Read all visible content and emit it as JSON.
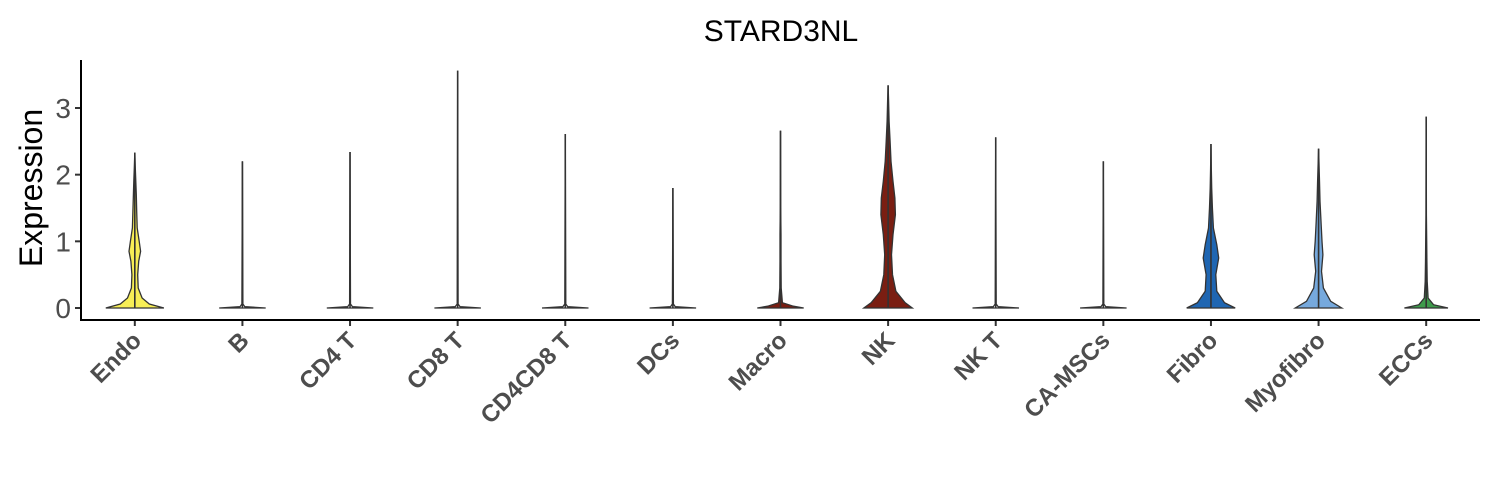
{
  "chart_data": {
    "type": "violin",
    "title": "STARD3NL",
    "xlabel": "",
    "ylabel": "Expression",
    "ylim": [
      -0.18,
      3.72
    ],
    "yticks": [
      0,
      1,
      2,
      3
    ],
    "grid": false,
    "legend": "none",
    "categories": [
      "Endo",
      "B",
      "CD4 T",
      "CD8 T",
      "CD4CD8 T",
      "DCs",
      "Macro",
      "NK",
      "NK T",
      "CA-MSCs",
      "Fibro",
      "Myofibro",
      "ECCs"
    ],
    "colors": [
      "#F7EE55",
      "#FFFFFF",
      "#FFFFFF",
      "#FFFFFF",
      "#FFFFFF",
      "#FFFFFF",
      "#7A1E12",
      "#7A1E12",
      "#FFFFFF",
      "#FFFFFF",
      "#1F66B2",
      "#76A9DD",
      "#3E9B4B"
    ],
    "max_values": [
      2.33,
      2.2,
      2.34,
      3.56,
      2.61,
      1.8,
      2.66,
      3.34,
      2.56,
      2.2,
      2.46,
      2.39,
      2.87
    ],
    "density_profiles": [
      [
        [
          0.0,
          0.6
        ],
        [
          0.06,
          0.3
        ],
        [
          0.15,
          0.15
        ],
        [
          0.3,
          0.07
        ],
        [
          0.5,
          0.06
        ],
        [
          0.7,
          0.08
        ],
        [
          0.85,
          0.12
        ],
        [
          1.0,
          0.09
        ],
        [
          1.2,
          0.05
        ],
        [
          1.45,
          0.04
        ],
        [
          1.7,
          0.03
        ],
        [
          1.9,
          0.02
        ],
        [
          2.1,
          0.01
        ],
        [
          2.33,
          0.0
        ]
      ],
      [
        [
          0.0,
          0.48
        ],
        [
          0.02,
          0.05
        ],
        [
          0.06,
          0.01
        ],
        [
          2.2,
          0.0
        ]
      ],
      [
        [
          0.0,
          0.48
        ],
        [
          0.02,
          0.05
        ],
        [
          0.06,
          0.01
        ],
        [
          2.34,
          0.0
        ]
      ],
      [
        [
          0.0,
          0.48
        ],
        [
          0.02,
          0.05
        ],
        [
          0.06,
          0.01
        ],
        [
          3.56,
          0.0
        ]
      ],
      [
        [
          0.0,
          0.48
        ],
        [
          0.02,
          0.05
        ],
        [
          0.06,
          0.01
        ],
        [
          2.61,
          0.0
        ]
      ],
      [
        [
          0.0,
          0.48
        ],
        [
          0.02,
          0.05
        ],
        [
          0.06,
          0.01
        ],
        [
          1.8,
          0.0
        ]
      ],
      [
        [
          0.0,
          0.48
        ],
        [
          0.03,
          0.25
        ],
        [
          0.08,
          0.04
        ],
        [
          0.3,
          0.015
        ],
        [
          0.7,
          0.01
        ],
        [
          1.1,
          0.01
        ],
        [
          1.5,
          0.005
        ],
        [
          2.66,
          0.0
        ]
      ],
      [
        [
          0.0,
          0.5
        ],
        [
          0.08,
          0.35
        ],
        [
          0.25,
          0.16
        ],
        [
          0.5,
          0.09
        ],
        [
          0.8,
          0.07
        ],
        [
          1.1,
          0.1
        ],
        [
          1.4,
          0.15
        ],
        [
          1.65,
          0.14
        ],
        [
          1.9,
          0.1
        ],
        [
          2.2,
          0.06
        ],
        [
          2.5,
          0.04
        ],
        [
          2.8,
          0.02
        ],
        [
          3.1,
          0.01
        ],
        [
          3.34,
          0.0
        ]
      ],
      [
        [
          0.0,
          0.48
        ],
        [
          0.02,
          0.05
        ],
        [
          0.06,
          0.01
        ],
        [
          2.56,
          0.0
        ]
      ],
      [
        [
          0.0,
          0.48
        ],
        [
          0.02,
          0.05
        ],
        [
          0.06,
          0.01
        ],
        [
          2.2,
          0.0
        ]
      ],
      [
        [
          0.0,
          0.5
        ],
        [
          0.08,
          0.28
        ],
        [
          0.25,
          0.12
        ],
        [
          0.5,
          0.1
        ],
        [
          0.75,
          0.16
        ],
        [
          0.95,
          0.12
        ],
        [
          1.2,
          0.05
        ],
        [
          1.5,
          0.03
        ],
        [
          1.8,
          0.015
        ],
        [
          2.1,
          0.008
        ],
        [
          2.46,
          0.0
        ]
      ],
      [
        [
          0.0,
          0.48
        ],
        [
          0.1,
          0.25
        ],
        [
          0.3,
          0.1
        ],
        [
          0.55,
          0.06
        ],
        [
          0.8,
          0.09
        ],
        [
          1.0,
          0.07
        ],
        [
          1.3,
          0.05
        ],
        [
          1.6,
          0.03
        ],
        [
          1.9,
          0.02
        ],
        [
          2.39,
          0.0
        ]
      ],
      [
        [
          0.0,
          0.45
        ],
        [
          0.05,
          0.15
        ],
        [
          0.15,
          0.04
        ],
        [
          0.4,
          0.02
        ],
        [
          0.7,
          0.015
        ],
        [
          1.0,
          0.01
        ],
        [
          1.4,
          0.005
        ],
        [
          2.87,
          0.0
        ]
      ]
    ]
  }
}
